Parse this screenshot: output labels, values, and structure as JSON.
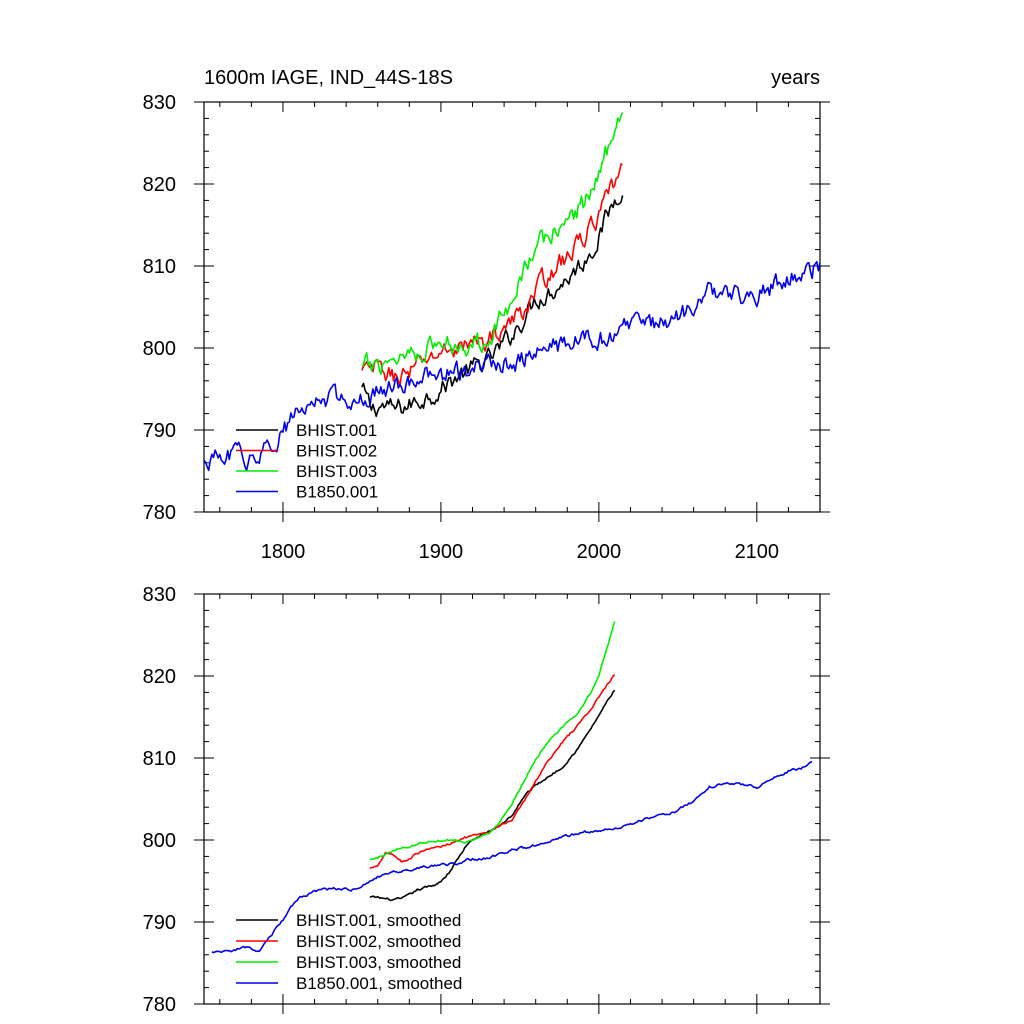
{
  "chart_data": [
    {
      "type": "line",
      "title": "1600m IAGE, IND_44S-18S",
      "title_right": "years",
      "xlim": [
        1750,
        2140
      ],
      "ylim": [
        780,
        830
      ],
      "xticks": [
        1800,
        1900,
        2000,
        2100
      ],
      "yticks": [
        780,
        790,
        800,
        810,
        820,
        830
      ],
      "show_x_tick_labels": true,
      "legend_position": "lower-left",
      "series": [
        {
          "name": "BHIST.001",
          "color": "#000000",
          "noise": 1.0,
          "x": [
            1850,
            1856,
            1862,
            1870,
            1880,
            1890,
            1900,
            1910,
            1920,
            1930,
            1940,
            1950,
            1960,
            1970,
            1980,
            1990,
            2000,
            2005,
            2010,
            2015
          ],
          "y": [
            795,
            792.5,
            793,
            792.5,
            793,
            794,
            795,
            796.5,
            797.5,
            798.5,
            800.5,
            803,
            806,
            807,
            808.5,
            810.5,
            813.5,
            816,
            818,
            820
          ]
        },
        {
          "name": "BHIST.002",
          "color": "#ff0000",
          "noise": 1.0,
          "x": [
            1850,
            1860,
            1870,
            1880,
            1890,
            1900,
            1910,
            1920,
            1930,
            1940,
            1950,
            1960,
            1970,
            1980,
            1990,
            2000,
            2005,
            2010,
            2015
          ],
          "y": [
            797,
            797.5,
            796.5,
            797,
            798.5,
            799.5,
            800,
            800.5,
            801,
            802.5,
            804,
            807,
            809.5,
            811,
            813.5,
            816,
            818,
            820,
            822
          ]
        },
        {
          "name": "BHIST.003",
          "color": "#00ee00",
          "noise": 1.1,
          "x": [
            1850,
            1860,
            1870,
            1880,
            1890,
            1900,
            1910,
            1920,
            1930,
            1940,
            1950,
            1960,
            1970,
            1980,
            1990,
            2000,
            2005,
            2010,
            2015
          ],
          "y": [
            797.5,
            798,
            799,
            799.5,
            800,
            800.5,
            800.5,
            800.5,
            801.5,
            804,
            809,
            812,
            814,
            815.5,
            817.5,
            821,
            824,
            828,
            828.5
          ]
        },
        {
          "name": "B1850.001",
          "color": "#0000ee",
          "noise": 1.0,
          "x": [
            1750,
            1760,
            1770,
            1780,
            1790,
            1800,
            1810,
            1820,
            1830,
            1840,
            1850,
            1860,
            1870,
            1880,
            1890,
            1900,
            1910,
            1920,
            1930,
            1940,
            1950,
            1960,
            1970,
            1980,
            1990,
            2000,
            2010,
            2020,
            2030,
            2040,
            2050,
            2060,
            2070,
            2080,
            2090,
            2100,
            2110,
            2120,
            2130,
            2140
          ],
          "y": [
            786,
            786.5,
            787,
            786.5,
            787.5,
            790,
            792,
            793.5,
            794,
            794,
            794,
            794.5,
            795.5,
            796,
            796.5,
            796.5,
            797,
            797.5,
            798,
            798,
            798.5,
            799.5,
            800,
            800.5,
            801,
            801,
            801.5,
            802.5,
            803,
            803,
            804,
            805,
            807,
            806.5,
            806.5,
            806.5,
            807.5,
            808.5,
            809,
            810
          ]
        }
      ]
    },
    {
      "type": "line",
      "title": "",
      "xlim": [
        1750,
        2140
      ],
      "ylim": [
        780,
        830
      ],
      "xticks": [
        1800,
        1900,
        2000,
        2100
      ],
      "yticks": [
        780,
        790,
        800,
        810,
        820,
        830
      ],
      "show_x_tick_labels": false,
      "legend_position": "lower-left",
      "series": [
        {
          "name": "BHIST.001, smoothed",
          "color": "#000000",
          "noise": 0.12,
          "x": [
            1855,
            1860,
            1865,
            1870,
            1875,
            1880,
            1885,
            1890,
            1895,
            1900,
            1905,
            1910,
            1915,
            1920,
            1925,
            1930,
            1935,
            1940,
            1945,
            1950,
            1955,
            1960,
            1965,
            1970,
            1975,
            1980,
            1985,
            1990,
            1995,
            2000,
            2005,
            2010
          ],
          "y": [
            793,
            793,
            792.8,
            792.7,
            792.8,
            793.3,
            793.9,
            794.2,
            794.4,
            795,
            796,
            797.5,
            799,
            800,
            800.5,
            801,
            801.5,
            802.2,
            803,
            804.5,
            805.8,
            806.7,
            807.3,
            808,
            808.6,
            809.6,
            810.8,
            812.1,
            813.6,
            815.2,
            816.8,
            818.3
          ]
        },
        {
          "name": "BHIST.002, smoothed",
          "color": "#ff0000",
          "noise": 0.12,
          "x": [
            1855,
            1860,
            1865,
            1870,
            1875,
            1880,
            1885,
            1890,
            1895,
            1900,
            1905,
            1910,
            1915,
            1920,
            1925,
            1930,
            1935,
            1940,
            1945,
            1950,
            1955,
            1960,
            1965,
            1970,
            1975,
            1980,
            1985,
            1990,
            1995,
            2000,
            2005,
            2010
          ],
          "y": [
            796.5,
            797,
            798.5,
            798.2,
            797.4,
            797.7,
            798.4,
            798.8,
            799,
            799.2,
            799.5,
            800,
            800.3,
            800.5,
            800.6,
            800.8,
            801.4,
            802,
            802.5,
            803.8,
            805.5,
            807.2,
            808.8,
            810.2,
            811.4,
            812.6,
            813.6,
            814.8,
            816,
            817.4,
            818.9,
            820.1
          ]
        },
        {
          "name": "BHIST.003, smoothed",
          "color": "#00ee00",
          "noise": 0.12,
          "x": [
            1855,
            1860,
            1865,
            1870,
            1875,
            1880,
            1885,
            1890,
            1895,
            1900,
            1905,
            1910,
            1915,
            1920,
            1925,
            1930,
            1935,
            1940,
            1945,
            1950,
            1955,
            1960,
            1965,
            1970,
            1975,
            1980,
            1985,
            1990,
            1995,
            2000,
            2005,
            2010
          ],
          "y": [
            797.6,
            797.8,
            798.3,
            798.7,
            799,
            799.2,
            799.5,
            799.7,
            799.9,
            800,
            800,
            800,
            799.8,
            800,
            800.3,
            800.8,
            801.8,
            803,
            804.5,
            806.3,
            808.1,
            809.8,
            811.3,
            812.3,
            813.3,
            814.3,
            815.2,
            816.3,
            818,
            820.2,
            823.3,
            826.5
          ]
        },
        {
          "name": "B1850.001, smoothed",
          "color": "#0000ee",
          "noise": 0.15,
          "x": [
            1755,
            1760,
            1765,
            1770,
            1775,
            1780,
            1785,
            1790,
            1795,
            1800,
            1805,
            1810,
            1815,
            1820,
            1825,
            1830,
            1835,
            1840,
            1845,
            1850,
            1855,
            1860,
            1870,
            1880,
            1890,
            1900,
            1910,
            1920,
            1930,
            1940,
            1950,
            1960,
            1970,
            1980,
            1990,
            2000,
            2010,
            2020,
            2030,
            2040,
            2050,
            2060,
            2070,
            2080,
            2090,
            2100,
            2110,
            2120,
            2130,
            2135
          ],
          "y": [
            786.3,
            786.4,
            786.3,
            786.6,
            786.8,
            786.8,
            786.4,
            787.6,
            789,
            790.3,
            791.7,
            792.8,
            793.3,
            793.8,
            794,
            794,
            794,
            794,
            793.9,
            794.4,
            795,
            795.5,
            796,
            796.4,
            796.7,
            796.9,
            797.2,
            797.7,
            797.8,
            798.4,
            799,
            799.4,
            800,
            800.5,
            801,
            801.2,
            801.4,
            802,
            802.6,
            803,
            803.6,
            804.8,
            806.4,
            807,
            806.8,
            806.5,
            807.4,
            808.4,
            808.8,
            809.7
          ]
        }
      ]
    }
  ]
}
